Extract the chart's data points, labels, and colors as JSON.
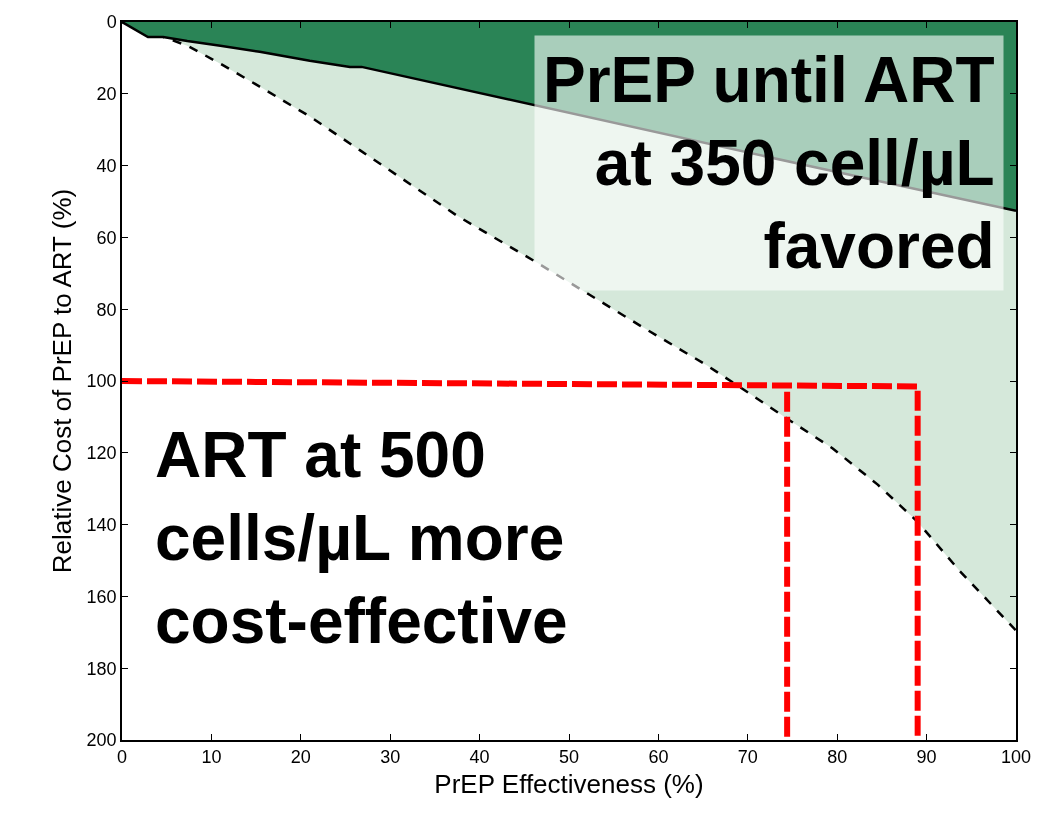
{
  "chart_data": {
    "type": "area",
    "xlabel": "PrEP Effectiveness (%)",
    "ylabel": "Relative Cost of PrEP to ART (%)",
    "xlim": [
      0,
      100
    ],
    "xticks": [
      0,
      10,
      20,
      30,
      40,
      50,
      60,
      70,
      80,
      90,
      100
    ],
    "ylim": [
      200,
      0
    ],
    "yticks": [
      0,
      20,
      40,
      60,
      80,
      100,
      120,
      140,
      160,
      180,
      200
    ],
    "marker": "none",
    "series": [
      {
        "color": "#d5e8da",
        "line_style": "dashed",
        "x": [
          0,
          7.3,
          11,
          15.4,
          21,
          26.6,
          37.5,
          46.4,
          57.9,
          65.4,
          69.9,
          74.4,
          79.5,
          84.5,
          88.9,
          93.7,
          100
        ],
        "values": [
          0,
          6.6,
          11.6,
          18,
          26.3,
          35.7,
          54,
          67,
          84.5,
          95.6,
          103,
          110.5,
          118.8,
          128.8,
          139,
          152.9,
          169.5
        ]
      },
      {
        "color": "#2a8456",
        "line_style": "solid",
        "x": [
          0,
          2.9,
          4.6,
          7.3,
          11,
          15.4,
          21,
          25.5,
          26.8,
          77,
          100
        ],
        "values": [
          0,
          4.2,
          4.2,
          5.3,
          6.6,
          8.3,
          10.8,
          12.5,
          12.5,
          40.2,
          52.6
        ]
      },
      {
        "type": "line",
        "color": "#ff0000",
        "line_style": "dashed",
        "x": [
          0,
          89,
          89
        ],
        "values": [
          100,
          101.5,
          199
        ]
      },
      {
        "type": "line",
        "color": "#ff0000",
        "line_style": "dashed",
        "x": [
          74.4,
          74.4
        ],
        "values": [
          103,
          200
        ]
      }
    ],
    "annotations": [
      "PrEP until ART\nat 350 cell/µL\nfavored",
      "ART at 500\ncells/µL more\ncost-effective"
    ]
  }
}
